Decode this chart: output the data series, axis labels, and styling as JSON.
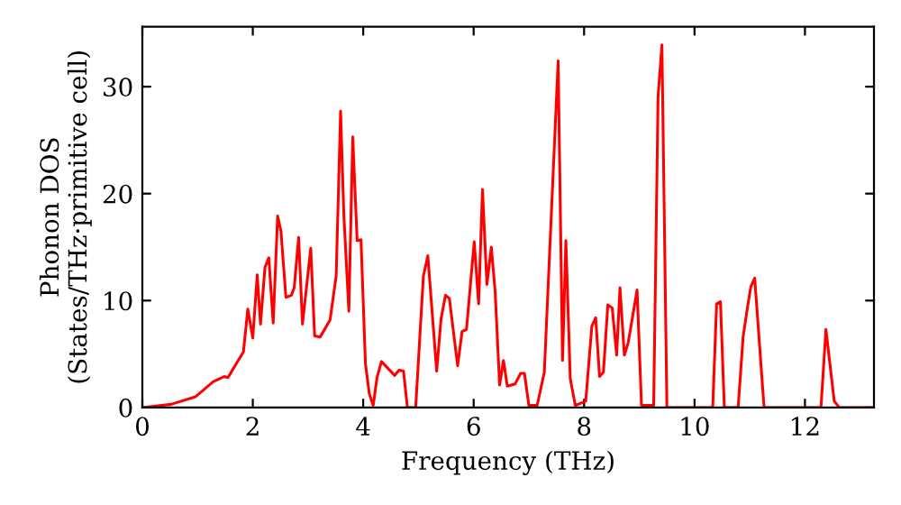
{
  "chart_data": {
    "type": "line",
    "xlabel": "Frequency (THz)",
    "ylabel": "Phonon DOS\n(States/THz·primitive cell)",
    "xlim": [
      0,
      13.25
    ],
    "ylim": [
      0,
      35.6
    ],
    "xticks": [
      0,
      2,
      4,
      6,
      8,
      10,
      12
    ],
    "yticks": [
      0,
      10,
      20,
      30
    ],
    "grid": false,
    "marker": "none",
    "line_style": "solid",
    "series": [
      {
        "color": "#ff0000",
        "x": [
          0,
          0.52,
          0.96,
          1.28,
          1.48,
          1.55,
          1.83,
          1.91,
          2.0,
          2.08,
          2.14,
          2.22,
          2.29,
          2.37,
          2.45,
          2.51,
          2.6,
          2.7,
          2.75,
          2.83,
          2.9,
          3.05,
          3.12,
          3.22,
          3.4,
          3.51,
          3.59,
          3.65,
          3.74,
          3.81,
          3.89,
          3.96,
          4.04,
          4.11,
          4.18,
          4.25,
          4.33,
          4.57,
          4.65,
          4.73,
          4.8,
          4.95,
          5.09,
          5.17,
          5.33,
          5.41,
          5.49,
          5.56,
          5.71,
          5.79,
          5.87,
          6.01,
          6.09,
          6.16,
          6.24,
          6.32,
          6.39,
          6.47,
          6.54,
          6.61,
          6.75,
          6.85,
          6.92,
          7.0,
          7.15,
          7.28,
          7.53,
          7.61,
          7.67,
          7.75,
          7.84,
          8.03,
          8.14,
          8.21,
          8.28,
          8.35,
          8.43,
          8.51,
          8.59,
          8.65,
          8.73,
          8.8,
          8.96,
          9.04,
          9.26,
          9.34,
          9.41,
          9.5,
          10.33,
          10.4,
          10.47,
          10.54,
          10.79,
          10.88,
          10.96,
          11.02,
          11.09,
          11.26,
          12.29,
          12.38,
          12.47,
          12.53,
          12.62,
          13.25
        ],
        "values": [
          0,
          0.3,
          1.0,
          2.4,
          2.9,
          2.8,
          5.2,
          9.2,
          6.5,
          12.4,
          7.8,
          13.1,
          14.0,
          7.9,
          17.9,
          16.5,
          10.3,
          10.5,
          11.2,
          15.9,
          7.8,
          14.9,
          6.7,
          6.6,
          8.2,
          12.3,
          27.7,
          17.9,
          9.0,
          25.3,
          15.6,
          15.7,
          4.1,
          1.3,
          0.2,
          2.8,
          4.3,
          3.0,
          3.5,
          3.4,
          0,
          0,
          12.3,
          14.2,
          3.4,
          8.3,
          10.5,
          10.2,
          3.9,
          7.1,
          7.3,
          15.5,
          9.7,
          20.4,
          11.5,
          15.0,
          10.8,
          2.1,
          4.4,
          2.0,
          2.2,
          3.2,
          3.2,
          0.2,
          0.2,
          3.3,
          32.4,
          4.4,
          15.6,
          2.7,
          0.2,
          0.6,
          7.6,
          8.4,
          2.9,
          3.3,
          9.6,
          9.3,
          4.9,
          11.2,
          4.9,
          6.1,
          11.0,
          0.2,
          0.2,
          29.1,
          33.9,
          0,
          0,
          9.7,
          9.9,
          0,
          0,
          6.6,
          9.4,
          11.3,
          12.1,
          0,
          0,
          7.3,
          3.3,
          0.6,
          0,
          0
        ]
      }
    ]
  }
}
